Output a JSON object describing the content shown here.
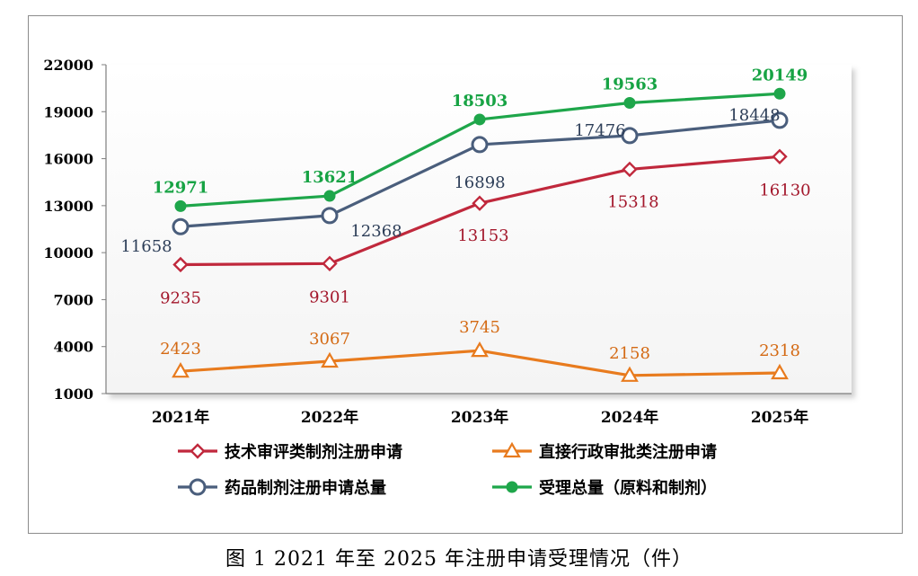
{
  "caption": "图 1   2021 年至 2025 年注册申请受理情况（件）",
  "chart_data": {
    "type": "line",
    "categories": [
      "2021年",
      "2022年",
      "2023年",
      "2024年",
      "2025年"
    ],
    "ylim": [
      1000,
      22000
    ],
    "yticks": [
      1000,
      4000,
      7000,
      10000,
      13000,
      16000,
      19000,
      22000
    ],
    "grid": false,
    "legend_position": "bottom",
    "series": [
      {
        "name": "技术审评类制剂注册申请",
        "values": [
          9235,
          9301,
          13153,
          15318,
          16130
        ],
        "color": "#c0283c",
        "marker": "diamond",
        "label_color": "#a3172b"
      },
      {
        "name": "直接行政审批类注册申请",
        "values": [
          2423,
          3067,
          3745,
          2158,
          2318
        ],
        "color": "#e87b1e",
        "marker": "triangle",
        "label_color": "#d46a14"
      },
      {
        "name": "药品制剂注册申请总量",
        "values": [
          11658,
          12368,
          16898,
          17476,
          18448
        ],
        "color": "#4a5e7c",
        "marker": "circle",
        "label_color": "#2d3e58"
      },
      {
        "name": "受理总量（原料和制剂）",
        "values": [
          12971,
          13621,
          18503,
          19563,
          20149
        ],
        "color": "#1ea64a",
        "marker": "filled-circle",
        "label_color": "#17a344"
      }
    ]
  }
}
